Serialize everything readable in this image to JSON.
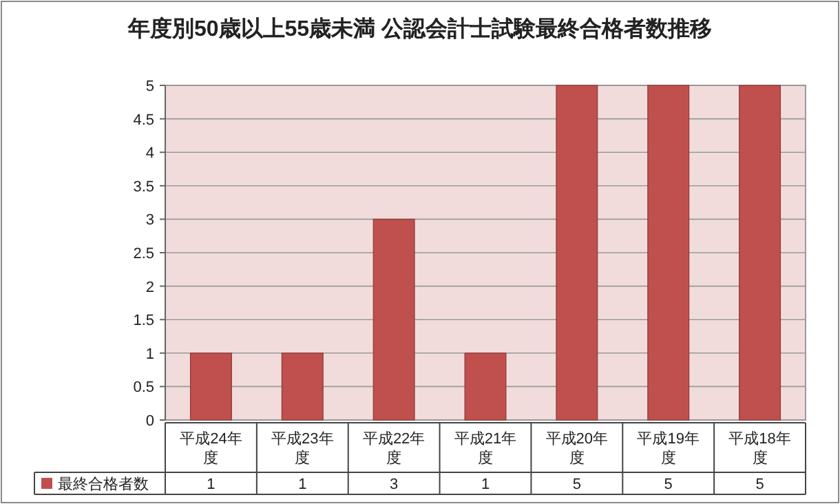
{
  "chart_data": {
    "type": "bar",
    "title": "年度別50歳以上55歳未満 公認会計士試験最終合格者数推移",
    "categories": [
      "平成24年度",
      "平成23年度",
      "平成22年度",
      "平成21年度",
      "平成20年度",
      "平成19年度",
      "平成18年度"
    ],
    "series": [
      {
        "name": "最終合格者数",
        "color": "#c0504d",
        "values": [
          1,
          1,
          3,
          1,
          5,
          5,
          5
        ]
      }
    ],
    "ylim": [
      0,
      5
    ],
    "yticks": [
      0,
      0.5,
      1,
      1.5,
      2,
      2.5,
      3,
      3.5,
      4,
      4.5,
      5
    ],
    "grid": "y",
    "data_labels": true,
    "legend": "bottom"
  }
}
